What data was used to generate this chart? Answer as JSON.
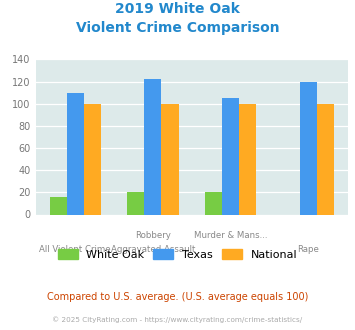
{
  "title_line1": "2019 White Oak",
  "title_line2": "Violent Crime Comparison",
  "cat_labels_row1": [
    "",
    "Robbery",
    "Murder & Mans...",
    ""
  ],
  "cat_labels_row2": [
    "All Violent Crime",
    "Aggravated Assault",
    "",
    "Rape"
  ],
  "white_oak": [
    16,
    20,
    20,
    0
  ],
  "texas": [
    110,
    122,
    105,
    120
  ],
  "national": [
    100,
    100,
    100,
    100
  ],
  "colors": {
    "white_oak": "#77cc44",
    "texas": "#4499ee",
    "national": "#ffaa22"
  },
  "ylim": [
    0,
    140
  ],
  "yticks": [
    0,
    20,
    40,
    60,
    80,
    100,
    120,
    140
  ],
  "plot_bg": "#ddeaea",
  "title_color": "#2288cc",
  "label_color": "#888888",
  "footnote1": "Compared to U.S. average. (U.S. average equals 100)",
  "footnote2": "© 2025 CityRating.com - https://www.cityrating.com/crime-statistics/",
  "footnote1_color": "#cc4400",
  "footnote2_color": "#aaaaaa",
  "legend_labels": [
    "White Oak",
    "Texas",
    "National"
  ]
}
